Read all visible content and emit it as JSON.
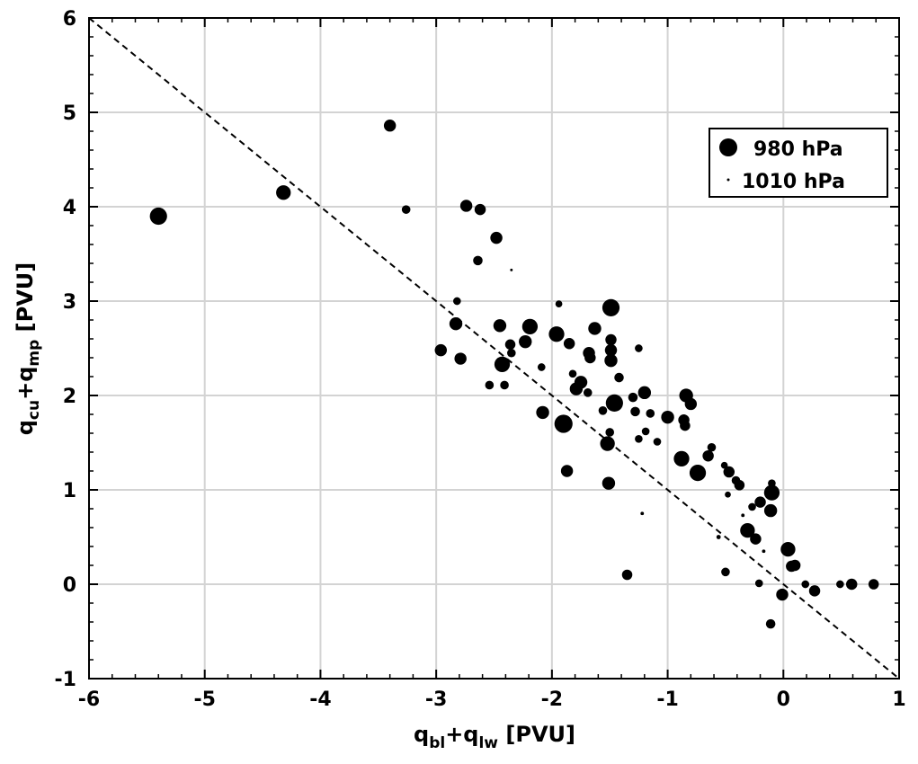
{
  "chart_data": {
    "type": "scatter",
    "title": "",
    "xlabel": {
      "base1": "q",
      "sub1": "bl",
      "plus": "+",
      "base2": "q",
      "sub2": "lw",
      "unit": " [PVU]"
    },
    "ylabel": {
      "base1": "q",
      "sub1": "cu",
      "plus": "+",
      "base2": "q",
      "sub2": "mp",
      "unit": " [PVU]"
    },
    "xlim": [
      -6,
      1
    ],
    "ylim": [
      -1,
      6
    ],
    "xticks": [
      "-6",
      "-5",
      "-4",
      "-3",
      "-2",
      "-1",
      "0",
      "1"
    ],
    "yticks": [
      "-1",
      "0",
      "1",
      "2",
      "3",
      "4",
      "5",
      "6"
    ],
    "grid": true,
    "reference_line": {
      "slope": -1,
      "intercept": 0,
      "style": "dashed"
    },
    "legend": {
      "placement": "top-right",
      "entries": [
        {
          "label": "980 hPa",
          "marker_size": 4
        },
        {
          "label": "1010 hPa",
          "marker_size": 0.6
        }
      ]
    },
    "points": [
      {
        "x": -5.4,
        "y": 3.9,
        "size": 4
      },
      {
        "x": -4.32,
        "y": 4.15,
        "size": 3.4
      },
      {
        "x": -3.4,
        "y": 4.86,
        "size": 2.8
      },
      {
        "x": -3.26,
        "y": 3.97,
        "size": 2
      },
      {
        "x": -2.74,
        "y": 4.01,
        "size": 2.8
      },
      {
        "x": -2.62,
        "y": 3.97,
        "size": 2.6
      },
      {
        "x": -2.48,
        "y": 3.67,
        "size": 2.8
      },
      {
        "x": -2.64,
        "y": 3.43,
        "size": 2.2
      },
      {
        "x": -2.35,
        "y": 3.33,
        "size": 0.6
      },
      {
        "x": -2.82,
        "y": 3.0,
        "size": 1.8
      },
      {
        "x": -2.83,
        "y": 2.76,
        "size": 3
      },
      {
        "x": -2.96,
        "y": 2.48,
        "size": 2.8
      },
      {
        "x": -2.79,
        "y": 2.39,
        "size": 2.8
      },
      {
        "x": -2.45,
        "y": 2.74,
        "size": 3
      },
      {
        "x": -2.19,
        "y": 2.73,
        "size": 3.6
      },
      {
        "x": -2.23,
        "y": 2.57,
        "size": 3
      },
      {
        "x": -2.36,
        "y": 2.54,
        "size": 2.4
      },
      {
        "x": -2.43,
        "y": 2.33,
        "size": 3.6
      },
      {
        "x": -2.54,
        "y": 2.11,
        "size": 2
      },
      {
        "x": -2.41,
        "y": 2.11,
        "size": 2
      },
      {
        "x": -2.35,
        "y": 2.45,
        "size": 2
      },
      {
        "x": -1.94,
        "y": 2.97,
        "size": 1.6
      },
      {
        "x": -1.96,
        "y": 2.65,
        "size": 3.6
      },
      {
        "x": -1.85,
        "y": 2.55,
        "size": 2.6
      },
      {
        "x": -2.09,
        "y": 2.3,
        "size": 1.8
      },
      {
        "x": -1.63,
        "y": 2.71,
        "size": 3
      },
      {
        "x": -1.49,
        "y": 2.93,
        "size": 4
      },
      {
        "x": -1.49,
        "y": 2.59,
        "size": 2.6
      },
      {
        "x": -1.49,
        "y": 2.48,
        "size": 2.8
      },
      {
        "x": -1.49,
        "y": 2.37,
        "size": 3
      },
      {
        "x": -1.68,
        "y": 2.45,
        "size": 2.8
      },
      {
        "x": -1.67,
        "y": 2.4,
        "size": 2.6
      },
      {
        "x": -1.25,
        "y": 2.5,
        "size": 1.8
      },
      {
        "x": -1.82,
        "y": 2.23,
        "size": 1.8
      },
      {
        "x": -1.79,
        "y": 2.07,
        "size": 3
      },
      {
        "x": -1.75,
        "y": 2.14,
        "size": 3
      },
      {
        "x": -1.69,
        "y": 2.03,
        "size": 2
      },
      {
        "x": -1.42,
        "y": 2.19,
        "size": 2.2
      },
      {
        "x": -1.46,
        "y": 1.92,
        "size": 4
      },
      {
        "x": -2.08,
        "y": 1.82,
        "size": 3
      },
      {
        "x": -1.9,
        "y": 1.7,
        "size": 4.2
      },
      {
        "x": -1.56,
        "y": 1.84,
        "size": 2
      },
      {
        "x": -1.3,
        "y": 1.98,
        "size": 2.2
      },
      {
        "x": -1.2,
        "y": 2.03,
        "size": 3
      },
      {
        "x": -1.15,
        "y": 1.81,
        "size": 2
      },
      {
        "x": -1.28,
        "y": 1.83,
        "size": 2.2
      },
      {
        "x": -1.25,
        "y": 1.54,
        "size": 1.8
      },
      {
        "x": -1.19,
        "y": 1.62,
        "size": 1.8
      },
      {
        "x": -0.84,
        "y": 2.0,
        "size": 3.2
      },
      {
        "x": -0.8,
        "y": 1.91,
        "size": 2.8
      },
      {
        "x": -1.0,
        "y": 1.77,
        "size": 3
      },
      {
        "x": -0.86,
        "y": 1.74,
        "size": 2.6
      },
      {
        "x": -0.85,
        "y": 1.68,
        "size": 2.4
      },
      {
        "x": -1.09,
        "y": 1.51,
        "size": 1.8
      },
      {
        "x": -1.5,
        "y": 1.61,
        "size": 2
      },
      {
        "x": -1.52,
        "y": 1.49,
        "size": 3.4
      },
      {
        "x": -1.87,
        "y": 1.2,
        "size": 2.8
      },
      {
        "x": -1.51,
        "y": 1.07,
        "size": 3
      },
      {
        "x": -0.88,
        "y": 1.33,
        "size": 3.6
      },
      {
        "x": -0.74,
        "y": 1.18,
        "size": 3.8
      },
      {
        "x": -0.65,
        "y": 1.36,
        "size": 2.6
      },
      {
        "x": -0.62,
        "y": 1.45,
        "size": 2
      },
      {
        "x": -0.51,
        "y": 1.26,
        "size": 1.6
      },
      {
        "x": -0.47,
        "y": 1.19,
        "size": 2.6
      },
      {
        "x": -0.41,
        "y": 1.1,
        "size": 2
      },
      {
        "x": -0.38,
        "y": 1.05,
        "size": 2.4
      },
      {
        "x": -0.48,
        "y": 0.95,
        "size": 1.4
      },
      {
        "x": -0.1,
        "y": 1.07,
        "size": 1.8
      },
      {
        "x": -0.1,
        "y": 0.97,
        "size": 3.6
      },
      {
        "x": -0.11,
        "y": 0.78,
        "size": 3
      },
      {
        "x": -0.2,
        "y": 0.87,
        "size": 2.6
      },
      {
        "x": -0.27,
        "y": 0.82,
        "size": 1.8
      },
      {
        "x": -0.31,
        "y": 0.57,
        "size": 3.4
      },
      {
        "x": -0.24,
        "y": 0.48,
        "size": 2.6
      },
      {
        "x": -0.17,
        "y": 0.35,
        "size": 0.8
      },
      {
        "x": -0.35,
        "y": 0.73,
        "size": 0.8
      },
      {
        "x": -0.56,
        "y": 0.5,
        "size": 1
      },
      {
        "x": -0.5,
        "y": 0.13,
        "size": 2
      },
      {
        "x": -1.22,
        "y": 0.75,
        "size": 0.8
      },
      {
        "x": -1.35,
        "y": 0.1,
        "size": 2.4
      },
      {
        "x": 0.04,
        "y": 0.37,
        "size": 3.4
      },
      {
        "x": 0.07,
        "y": 0.19,
        "size": 2.6
      },
      {
        "x": 0.1,
        "y": 0.2,
        "size": 2.6
      },
      {
        "x": -0.21,
        "y": 0.01,
        "size": 1.8
      },
      {
        "x": -0.01,
        "y": -0.11,
        "size": 2.8
      },
      {
        "x": -0.11,
        "y": -0.42,
        "size": 2.2
      },
      {
        "x": 0.19,
        "y": 0.0,
        "size": 1.8
      },
      {
        "x": 0.27,
        "y": -0.07,
        "size": 2.6
      },
      {
        "x": 0.49,
        "y": 0.0,
        "size": 1.8
      },
      {
        "x": 0.59,
        "y": 0.0,
        "size": 2.6
      },
      {
        "x": 0.78,
        "y": 0.0,
        "size": 2.4
      }
    ]
  }
}
